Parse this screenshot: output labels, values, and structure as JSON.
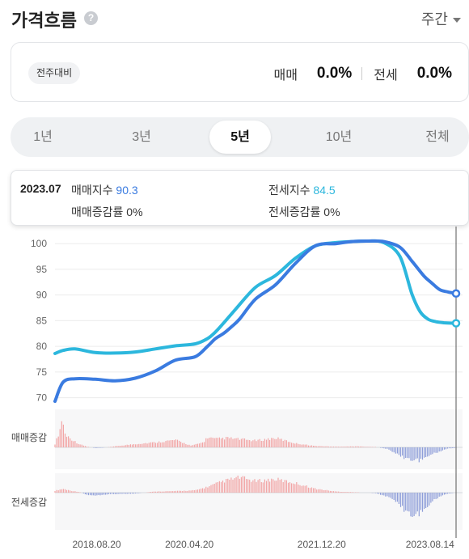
{
  "header": {
    "title": "가격흐름",
    "help_icon": "question-circle-icon",
    "period": "주간",
    "period_icon": "caret-down-icon"
  },
  "summary": {
    "badge": "전주대비",
    "sale_label": "매매",
    "sale_value": "0.0%",
    "jeonse_label": "전세",
    "jeonse_value": "0.0%"
  },
  "range_tabs": [
    {
      "label": "1년",
      "active": false
    },
    {
      "label": "3년",
      "active": false
    },
    {
      "label": "5년",
      "active": true
    },
    {
      "label": "10년",
      "active": false
    },
    {
      "label": "전체",
      "active": false
    }
  ],
  "tooltip": {
    "date": "2023.07",
    "sale_index_label": "매매지수",
    "sale_index_value": "90.3",
    "jeonse_index_label": "전세지수",
    "jeonse_index_value": "84.5",
    "sale_change_label": "매매증감률",
    "sale_change_value": "0%",
    "jeonse_change_label": "전세증감률",
    "jeonse_change_value": "0%"
  },
  "colors": {
    "sale": "#3a7be0",
    "jeonse": "#2cb7dd",
    "increase": "#f2a6a6",
    "decrease": "#8e9ed9"
  },
  "chart_data": [
    {
      "type": "line",
      "ylim": [
        69,
        100.5
      ],
      "yticks": [
        70,
        75,
        80,
        85,
        90,
        95,
        100
      ],
      "grid": true,
      "x_tick_labels": [
        "2018.08.20",
        "2020.04.20",
        "2021.12.20",
        "2023.08.14"
      ],
      "series": [
        {
          "name": "매매지수",
          "x": [
            0,
            0.02,
            0.05,
            0.1,
            0.15,
            0.2,
            0.25,
            0.3,
            0.35,
            0.38,
            0.4,
            0.42,
            0.44,
            0.46,
            0.5,
            0.55,
            0.6,
            0.65,
            0.7,
            0.74,
            0.78,
            0.82,
            0.86,
            0.89,
            0.92,
            0.94,
            0.96,
            0.98,
            1.0
          ],
          "values": [
            69.3,
            73.0,
            73.7,
            73.6,
            73.3,
            73.8,
            75.2,
            77.3,
            78.0,
            80.0,
            81.5,
            82.5,
            83.8,
            85.3,
            89.2,
            92.0,
            96.2,
            99.6,
            100.0,
            100.4,
            100.5,
            100.4,
            99.3,
            96.6,
            93.7,
            92.3,
            91.0,
            90.6,
            90.3
          ]
        },
        {
          "name": "전세지수",
          "x": [
            0,
            0.02,
            0.05,
            0.1,
            0.15,
            0.2,
            0.25,
            0.3,
            0.35,
            0.38,
            0.4,
            0.42,
            0.45,
            0.5,
            0.55,
            0.6,
            0.65,
            0.7,
            0.74,
            0.78,
            0.82,
            0.86,
            0.89,
            0.91,
            0.93,
            0.95,
            0.97,
            1.0
          ],
          "values": [
            78.6,
            79.2,
            79.5,
            78.8,
            78.7,
            78.9,
            79.5,
            80.1,
            80.5,
            81.5,
            82.8,
            84.5,
            87.2,
            91.5,
            93.8,
            97.2,
            99.6,
            100.2,
            100.4,
            100.5,
            100.2,
            97.5,
            90.2,
            86.8,
            85.3,
            84.8,
            84.6,
            84.5
          ]
        }
      ]
    },
    {
      "type": "bar",
      "name": "매매증감",
      "envelope_x": [
        0,
        0.012,
        0.018,
        0.025,
        0.04,
        0.06,
        0.08,
        0.1,
        0.12,
        0.2,
        0.25,
        0.3,
        0.34,
        0.37,
        0.38,
        0.4,
        0.43,
        0.5,
        0.55,
        0.6,
        0.65,
        0.7,
        0.75,
        0.8,
        0.83,
        0.86,
        0.88,
        0.91,
        0.93,
        0.96,
        0.98,
        1.0
      ],
      "envelope_values": [
        0.1,
        0.5,
        0.9,
        0.4,
        0.25,
        0.1,
        0.02,
        -0.02,
        -0.01,
        0.1,
        0.15,
        0.22,
        0.05,
        0.15,
        0.3,
        0.25,
        0.28,
        0.2,
        0.28,
        0.12,
        0.04,
        0.02,
        0.03,
        0.01,
        -0.05,
        -0.25,
        -0.35,
        -0.4,
        -0.25,
        -0.12,
        -0.03,
        -0.02
      ]
    },
    {
      "type": "bar",
      "name": "전세증감",
      "envelope_x": [
        0,
        0.02,
        0.04,
        0.06,
        0.08,
        0.1,
        0.14,
        0.2,
        0.25,
        0.3,
        0.35,
        0.38,
        0.42,
        0.46,
        0.5,
        0.55,
        0.6,
        0.65,
        0.7,
        0.75,
        0.8,
        0.84,
        0.86,
        0.88,
        0.9,
        0.92,
        0.94,
        0.96,
        0.98,
        1.0
      ],
      "envelope_values": [
        0.05,
        0.1,
        0.05,
        0.02,
        -0.05,
        -0.06,
        -0.03,
        -0.02,
        0.03,
        0.04,
        0.06,
        0.15,
        0.3,
        0.4,
        0.3,
        0.35,
        0.25,
        0.1,
        0.03,
        0.01,
        -0.01,
        -0.12,
        -0.28,
        -0.45,
        -0.52,
        -0.38,
        -0.2,
        -0.08,
        -0.02,
        0.0
      ]
    }
  ]
}
